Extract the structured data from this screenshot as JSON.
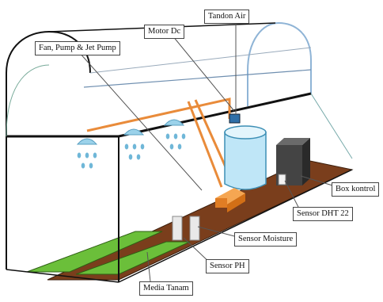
{
  "labels": {
    "tandon_air": "Tandon Air",
    "motor_dc": "Motor Dc",
    "fan_pump": "Fan, Pump & Jet Pump",
    "box_kontrol": "Box kontrol",
    "sensor_dht": "Sensor DHT 22",
    "sensor_moisture": "Sensor Moisture",
    "sensor_ph": "Sensor PH",
    "media_tanam": "Media Tanam"
  },
  "colors": {
    "frame": "#111111",
    "soil": "#7a3e1c",
    "grass": "#6bbf3a",
    "pipe": "#e98b3a",
    "water_tank": "#bfe6f7",
    "droplet": "#6fb7d8",
    "box": "#3c3c3c",
    "leader": "#555555"
  }
}
